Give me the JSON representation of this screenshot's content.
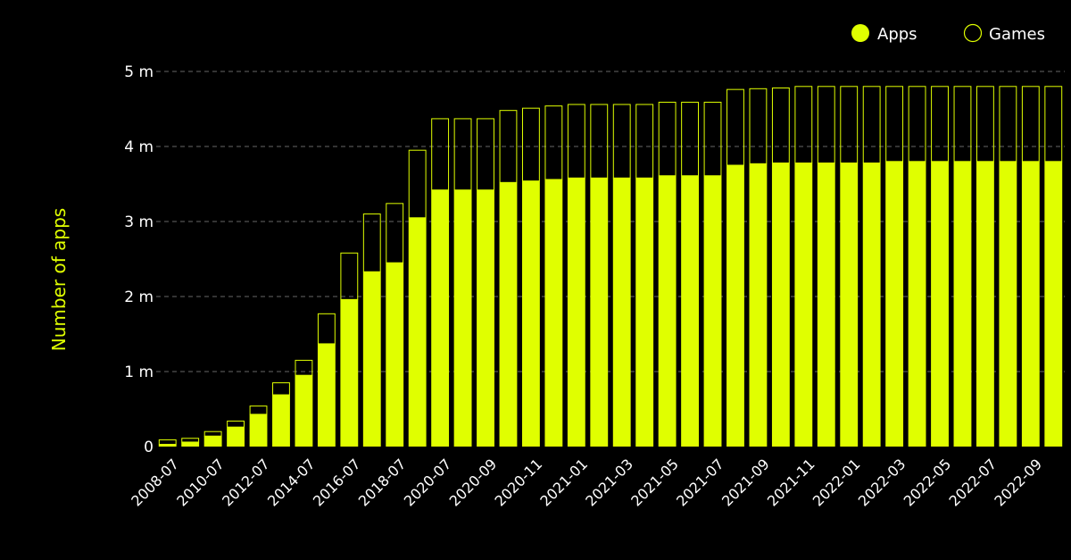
{
  "chart_data": {
    "type": "bar",
    "stacked": true,
    "ylabel": "Number of apps",
    "xlabel": "",
    "title": "",
    "ylim": [
      0,
      5000000
    ],
    "yticks": [
      "0",
      "1 m",
      "2 m",
      "3 m",
      "4 m",
      "5 m"
    ],
    "legend_position": "top-right",
    "categories": [
      "2008-07",
      "2009-07",
      "2010-07",
      "2011-07",
      "2012-07",
      "2013-07",
      "2014-07",
      "2015-07",
      "2016-07",
      "2017-07",
      "2018-07",
      "2019-07",
      "2020-07",
      "2020-08",
      "2020-09",
      "2020-10",
      "2020-11",
      "2020-12",
      "2021-01",
      "2021-02",
      "2021-03",
      "2021-04",
      "2021-05",
      "2021-06",
      "2021-07",
      "2021-08",
      "2021-09",
      "2021-10",
      "2021-11",
      "2021-12",
      "2022-01",
      "2022-02",
      "2022-03",
      "2022-04",
      "2022-05",
      "2022-06",
      "2022-07",
      "2022-08",
      "2022-09",
      "2022-10"
    ],
    "x_tick_labels_shown": [
      "2008-07",
      "2010-07",
      "2012-07",
      "2014-07",
      "2016-07",
      "2018-07",
      "2020-07",
      "2020-09",
      "2020-11",
      "2021-01",
      "2021-03",
      "2021-05",
      "2021-07",
      "2021-09",
      "2021-11",
      "2022-01",
      "2022-03",
      "2022-05",
      "2022-07",
      "2022-09"
    ],
    "series": [
      {
        "name": "Apps",
        "color": "#e0ff00",
        "style": "filled",
        "values": [
          30000,
          60000,
          140000,
          260000,
          430000,
          690000,
          950000,
          1370000,
          1960000,
          2330000,
          2450000,
          3050000,
          3420000,
          3420000,
          3420000,
          3520000,
          3540000,
          3560000,
          3580000,
          3580000,
          3580000,
          3580000,
          3610000,
          3610000,
          3610000,
          3750000,
          3770000,
          3780000,
          3780000,
          3780000,
          3780000,
          3780000,
          3800000,
          3800000,
          3800000,
          3800000,
          3800000,
          3800000,
          3800000,
          3800000
        ]
      },
      {
        "name": "Games",
        "color": "#e0ff00",
        "style": "outline",
        "values": [
          60000,
          50000,
          60000,
          80000,
          110000,
          160000,
          200000,
          400000,
          620000,
          770000,
          790000,
          900000,
          950000,
          950000,
          950000,
          960000,
          970000,
          980000,
          980000,
          980000,
          980000,
          980000,
          980000,
          980000,
          980000,
          1010000,
          1000000,
          1000000,
          1020000,
          1020000,
          1020000,
          1020000,
          1000000,
          1000000,
          1000000,
          1000000,
          1000000,
          1000000,
          1000000,
          1000000
        ]
      }
    ]
  }
}
